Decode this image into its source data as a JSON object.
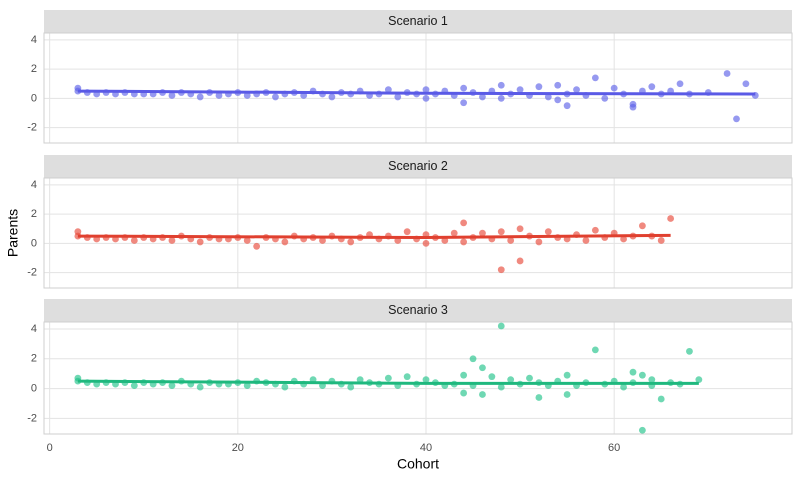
{
  "chart_data": [
    {
      "type": "scatter",
      "title": "Scenario 1",
      "xlim": [
        -0.6,
        78.9
      ],
      "ylim": [
        -3.05,
        4.47
      ],
      "xticks": [
        0,
        20,
        40,
        60
      ],
      "yticks": [
        -2,
        0,
        2,
        4
      ],
      "grid": true,
      "series": [
        {
          "type": "scatter",
          "color": "#5d62e8",
          "x": [
            3,
            3,
            4,
            5,
            6,
            7,
            8,
            9,
            10,
            11,
            12,
            13,
            14,
            15,
            16,
            17,
            18,
            19,
            20,
            21,
            22,
            23,
            24,
            25,
            26,
            27,
            28,
            29,
            30,
            31,
            32,
            33,
            34,
            35,
            36,
            37,
            38,
            39,
            40,
            40,
            41,
            42,
            43,
            44,
            44,
            45,
            46,
            47,
            48,
            48,
            49,
            50,
            51,
            52,
            53,
            54,
            54,
            55,
            55,
            56,
            57,
            58,
            59,
            60,
            61,
            62,
            62,
            63,
            64,
            65,
            66,
            67,
            68,
            70,
            72,
            73,
            74,
            75
          ],
          "values": [
            0.7,
            0.5,
            0.4,
            0.3,
            0.4,
            0.3,
            0.4,
            0.3,
            0.3,
            0.3,
            0.4,
            0.2,
            0.4,
            0.3,
            0.1,
            0.4,
            0.2,
            0.3,
            0.4,
            0.2,
            0.3,
            0.4,
            0.1,
            0.3,
            0.4,
            0.2,
            0.5,
            0.3,
            0.1,
            0.4,
            0.3,
            0.5,
            0.2,
            0.3,
            0.6,
            0.1,
            0.4,
            0.3,
            0.0,
            0.6,
            0.3,
            0.5,
            0.2,
            -0.3,
            0.7,
            0.4,
            0.1,
            0.5,
            0.9,
            0.0,
            0.3,
            0.6,
            0.2,
            0.8,
            0.1,
            0.9,
            -0.1,
            0.3,
            -0.5,
            0.6,
            0.2,
            1.4,
            0.0,
            0.7,
            0.3,
            -0.6,
            -0.4,
            0.5,
            0.8,
            0.3,
            0.5,
            1.0,
            0.3,
            0.4,
            1.7,
            -1.4,
            1.0,
            0.2
          ]
        },
        {
          "type": "line",
          "color": "#5a5ae6",
          "x": [
            3,
            40,
            75
          ],
          "values": [
            0.5,
            0.35,
            0.3
          ]
        }
      ]
    },
    {
      "type": "scatter",
      "title": "Scenario 2",
      "y_label": "Parents",
      "xlim": [
        -0.6,
        78.9
      ],
      "ylim": [
        -3.05,
        4.47
      ],
      "xticks": [
        0,
        20,
        40,
        60
      ],
      "yticks": [
        -2,
        0,
        2,
        4
      ],
      "grid": true,
      "series": [
        {
          "type": "scatter",
          "color": "#e8493a",
          "x": [
            3,
            3,
            4,
            5,
            6,
            7,
            8,
            9,
            10,
            11,
            12,
            13,
            14,
            15,
            16,
            17,
            18,
            19,
            20,
            21,
            22,
            23,
            24,
            25,
            26,
            27,
            28,
            29,
            30,
            31,
            32,
            33,
            34,
            35,
            36,
            37,
            38,
            39,
            40,
            40,
            41,
            42,
            43,
            44,
            44,
            45,
            46,
            47,
            48,
            48,
            49,
            50,
            50,
            51,
            52,
            53,
            54,
            55,
            56,
            57,
            58,
            59,
            60,
            61,
            62,
            63,
            64,
            65,
            66
          ],
          "values": [
            0.8,
            0.5,
            0.4,
            0.3,
            0.4,
            0.3,
            0.4,
            0.2,
            0.4,
            0.3,
            0.4,
            0.2,
            0.5,
            0.3,
            0.1,
            0.4,
            0.3,
            0.3,
            0.4,
            0.2,
            -0.2,
            0.4,
            0.3,
            0.1,
            0.5,
            0.3,
            0.4,
            0.2,
            0.5,
            0.3,
            0.1,
            0.4,
            0.6,
            0.3,
            0.5,
            0.2,
            0.8,
            0.3,
            0.0,
            0.6,
            0.4,
            0.2,
            0.7,
            1.4,
            0.1,
            0.4,
            0.7,
            0.3,
            -1.8,
            0.8,
            0.2,
            1.0,
            -1.2,
            0.5,
            0.1,
            0.8,
            0.4,
            0.3,
            0.6,
            0.2,
            0.9,
            0.4,
            0.7,
            0.3,
            0.5,
            1.2,
            0.5,
            0.2,
            1.7
          ]
        },
        {
          "type": "line",
          "color": "#e0402f",
          "x": [
            3,
            40,
            66
          ],
          "values": [
            0.5,
            0.4,
            0.55
          ]
        }
      ]
    },
    {
      "type": "scatter",
      "title": "Scenario 3",
      "x_label": "Cohort",
      "xlim": [
        -0.6,
        78.9
      ],
      "ylim": [
        -3.05,
        4.47
      ],
      "xticks": [
        0,
        20,
        40,
        60
      ],
      "yticks": [
        -2,
        0,
        2,
        4
      ],
      "grid": true,
      "series": [
        {
          "type": "scatter",
          "color": "#22c38a",
          "x": [
            3,
            3,
            4,
            5,
            6,
            7,
            8,
            9,
            10,
            11,
            12,
            13,
            14,
            15,
            16,
            17,
            18,
            19,
            20,
            21,
            22,
            23,
            24,
            25,
            26,
            27,
            28,
            29,
            30,
            31,
            32,
            33,
            34,
            35,
            36,
            37,
            38,
            39,
            40,
            41,
            42,
            43,
            44,
            44,
            45,
            45,
            46,
            46,
            47,
            48,
            48,
            49,
            50,
            51,
            52,
            52,
            53,
            54,
            55,
            55,
            56,
            57,
            58,
            59,
            60,
            61,
            62,
            62,
            63,
            63,
            64,
            64,
            65,
            66,
            67,
            68,
            69
          ],
          "values": [
            0.7,
            0.5,
            0.4,
            0.3,
            0.4,
            0.3,
            0.4,
            0.2,
            0.4,
            0.3,
            0.4,
            0.2,
            0.5,
            0.3,
            0.1,
            0.4,
            0.3,
            0.3,
            0.4,
            0.2,
            0.5,
            0.4,
            0.3,
            0.1,
            0.5,
            0.3,
            0.6,
            0.2,
            0.5,
            0.3,
            0.1,
            0.6,
            0.4,
            0.3,
            0.7,
            0.2,
            0.8,
            0.3,
            0.6,
            0.4,
            0.2,
            0.3,
            0.9,
            -0.3,
            2.0,
            0.2,
            1.4,
            -0.4,
            0.8,
            4.2,
            0.1,
            0.6,
            0.3,
            0.7,
            -0.6,
            0.4,
            0.2,
            0.5,
            -0.4,
            0.9,
            0.2,
            0.4,
            2.6,
            0.3,
            0.5,
            0.1,
            1.1,
            0.4,
            -2.8,
            0.9,
            0.6,
            0.2,
            -0.7,
            0.4,
            0.3,
            2.5,
            0.6
          ]
        },
        {
          "type": "line",
          "color": "#1fb87e",
          "x": [
            3,
            40,
            69
          ],
          "values": [
            0.5,
            0.35,
            0.35
          ]
        }
      ]
    }
  ]
}
